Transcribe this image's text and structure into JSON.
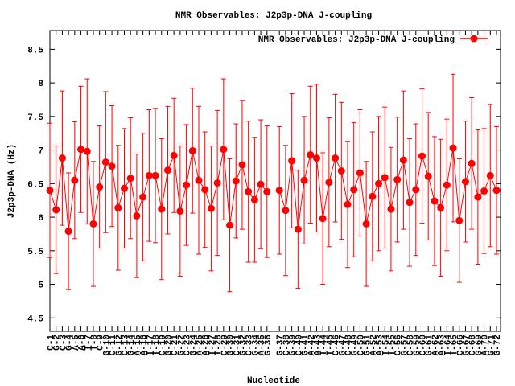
{
  "chart_data": {
    "type": "line",
    "title": "NMR Observables: J2p3p-DNA J-coupling",
    "xlabel": "Nucleotide",
    "ylabel": "J2p3p-DNA (Hz)",
    "categories": [
      "C-1",
      "G-2",
      "C-3",
      "G-4",
      "A-5",
      "A-6",
      "T-7",
      "T-8",
      "C-9",
      "G-10",
      "C-11",
      "G-12",
      "C-13",
      "G-14",
      "A-15",
      "A-16",
      "T-17",
      "T-18",
      "C-19",
      "G-20",
      "C-21",
      "G-22",
      "C-23",
      "G-24",
      "A-25",
      "A-26",
      "T-27",
      "T-28",
      "C-29",
      "G-30",
      "C-31",
      "G-32",
      "C-33",
      "G-34",
      "A-35",
      "G-36",
      null,
      "G-37",
      "C-38",
      "G-39",
      "C-40",
      "G-41",
      "A-42",
      "A-43",
      "T-44",
      "T-45",
      "C-46",
      "G-47",
      "C-48",
      "G-49",
      "C-50",
      "G-51",
      "A-52",
      "A-53",
      "T-54",
      "T-55",
      "C-56",
      "G-57",
      "C-58",
      "G-59",
      "C-60",
      "G-61",
      "A-62",
      "A-63",
      "T-64",
      "T-65",
      "C-66",
      "G-67",
      "C-68",
      "G-69",
      "A-70",
      "G-71",
      "G-72"
    ],
    "series": [
      {
        "name": "NMR Observables: J2p3p-DNA J-coupling",
        "color": "#ff0000",
        "values": [
          6.4,
          6.11,
          6.88,
          5.79,
          6.55,
          7.01,
          6.98,
          5.9,
          6.45,
          6.82,
          6.76,
          6.14,
          6.43,
          6.58,
          6.02,
          6.3,
          6.62,
          6.62,
          6.12,
          6.7,
          6.92,
          6.09,
          6.48,
          6.99,
          6.55,
          6.41,
          6.13,
          6.51,
          7.01,
          5.88,
          6.54,
          6.78,
          6.38,
          6.26,
          6.49,
          6.38,
          null,
          6.4,
          6.1,
          6.84,
          5.82,
          6.55,
          6.93,
          6.88,
          5.98,
          6.52,
          6.88,
          6.69,
          6.19,
          6.41,
          6.66,
          5.9,
          6.31,
          6.5,
          6.59,
          6.12,
          6.56,
          6.85,
          6.22,
          6.41,
          6.91,
          6.61,
          6.24,
          6.14,
          6.48,
          7.03,
          5.95,
          6.53,
          6.8,
          6.3,
          6.39,
          6.62,
          6.4
        ],
        "errors": [
          1.0,
          0.95,
          1.0,
          0.87,
          0.87,
          0.94,
          1.08,
          0.93,
          0.91,
          1.05,
          0.9,
          0.93,
          0.89,
          0.9,
          0.92,
          0.95,
          0.98,
          1.0,
          1.05,
          0.95,
          0.85,
          0.97,
          0.9,
          0.93,
          1.1,
          0.86,
          0.93,
          1.08,
          1.05,
          0.99,
          0.85,
          0.96,
          1.05,
          0.93,
          0.96,
          0.98,
          null,
          0.95,
          0.97,
          1.0,
          0.88,
          0.95,
          1.02,
          1.1,
          0.98,
          0.96,
          0.95,
          1.02,
          0.94,
          1.0,
          0.94,
          0.93,
          0.96,
          1.0,
          1.05,
          0.92,
          0.93,
          1.03,
          0.95,
          0.98,
          1.0,
          0.95,
          0.96,
          1.02,
          0.98,
          1.1,
          0.92,
          0.9,
          0.98,
          1.0,
          0.93,
          1.06,
          0.95
        ]
      }
    ],
    "ylim": [
      4.3,
      8.78
    ],
    "yticks": [
      4.5,
      5,
      5.5,
      6,
      6.5,
      7,
      7.5,
      8,
      8.5
    ],
    "legend": "top-right"
  }
}
